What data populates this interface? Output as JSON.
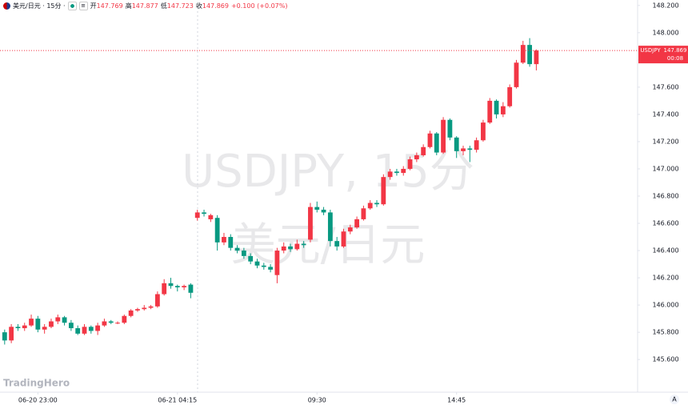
{
  "chart_data": {
    "type": "candlestick",
    "header": {
      "symbol": "美元/日元 · 15分 ·",
      "open_label": "开",
      "high_label": "高",
      "low_label": "低",
      "close_label": "收",
      "change": "+0.100 (+0.07%)"
    },
    "watermark": [
      "USDJPY, 15分",
      "美元/日元"
    ],
    "price_label": {
      "symbol": "USDJPY",
      "countdown": "00:08"
    },
    "logo": "TradingHero",
    "scale_mode": "A",
    "up_color": "#f23645",
    "down_color": "#089981",
    "grid": false,
    "xlim": [
      -0.7,
      95
    ],
    "xticks": [
      {
        "value": 5,
        "label": "06-20 23:00"
      },
      {
        "value": 26,
        "label": "06-21 04:15"
      },
      {
        "value": 47,
        "label": "09:30"
      },
      {
        "value": 68,
        "label": "14:45"
      }
    ],
    "ylim": [
      145.36,
      148.24
    ],
    "yticks": [
      {
        "value": 145.6,
        "label": "145.600"
      },
      {
        "value": 145.8,
        "label": "145.800"
      },
      {
        "value": 146,
        "label": "146.000"
      },
      {
        "value": 146.2,
        "label": "146.200"
      },
      {
        "value": 146.4,
        "label": "146.400"
      },
      {
        "value": 146.6,
        "label": "146.600"
      },
      {
        "value": 146.8,
        "label": "146.800"
      },
      {
        "value": 147,
        "label": "147.000"
      },
      {
        "value": 147.2,
        "label": "147.200"
      },
      {
        "value": 147.4,
        "label": "147.400"
      },
      {
        "value": 147.6,
        "label": "147.600"
      },
      {
        "value": 147.8,
        "label": "147.800"
      },
      {
        "value": 148,
        "label": "148.000"
      },
      {
        "value": 148.2,
        "label": "148.200"
      }
    ],
    "open": [
      145.8,
      145.74,
      145.84,
      145.83,
      145.85,
      145.9,
      145.82,
      145.84,
      145.88,
      145.91,
      145.87,
      145.83,
      145.79,
      145.84,
      145.81,
      145.85,
      145.88,
      145.87,
      145.87,
      145.92,
      145.96,
      145.97,
      145.98,
      145.99,
      146.08,
      146.16,
      146.14,
      146.13,
      146.15,
      146.64,
      146.68,
      146.63,
      146.64,
      146.46,
      146.5,
      146.42,
      146.4,
      146.36,
      146.32,
      146.29,
      146.28,
      146.22,
      146.4,
      146.43,
      146.41,
      146.45,
      146.48,
      146.72,
      146.7,
      146.68,
      146.47,
      146.43,
      146.54,
      146.57,
      146.63,
      146.71,
      146.75,
      146.74,
      146.94,
      146.98,
      146.97,
      147.0,
      147.07,
      147.1,
      147.16,
      147.26,
      147.12,
      147.36,
      147.23,
      147.13,
      147.15,
      147.14,
      147.21,
      147.34,
      147.5,
      147.4,
      147.46,
      147.6,
      147.78,
      147.91,
      147.769
    ],
    "high": [
      145.82,
      145.86,
      145.86,
      145.87,
      145.93,
      145.92,
      145.86,
      145.9,
      145.93,
      145.92,
      145.89,
      145.85,
      145.86,
      145.85,
      145.87,
      145.9,
      145.89,
      145.88,
      145.93,
      145.97,
      145.98,
      146.0,
      146.0,
      146.1,
      146.19,
      146.2,
      146.15,
      146.15,
      146.16,
      146.7,
      146.7,
      146.67,
      146.66,
      146.53,
      146.52,
      146.44,
      146.42,
      146.38,
      146.34,
      146.31,
      146.3,
      146.42,
      146.46,
      146.45,
      146.48,
      146.47,
      146.75,
      146.76,
      146.72,
      146.7,
      146.5,
      146.56,
      146.59,
      146.65,
      146.73,
      146.77,
      146.77,
      146.96,
      147.0,
      147.0,
      147.02,
      147.09,
      147.12,
      147.18,
      147.28,
      147.27,
      147.38,
      147.37,
      147.24,
      147.17,
      147.17,
      147.23,
      147.36,
      147.52,
      147.51,
      147.49,
      147.62,
      147.8,
      147.94,
      147.96,
      147.877
    ],
    "low": [
      145.71,
      145.72,
      145.81,
      145.81,
      145.84,
      145.8,
      145.79,
      145.83,
      145.86,
      145.85,
      145.81,
      145.78,
      145.78,
      145.79,
      145.78,
      145.84,
      145.86,
      145.86,
      145.86,
      145.91,
      145.95,
      145.96,
      145.97,
      145.98,
      146.07,
      146.12,
      146.1,
      146.11,
      146.05,
      146.62,
      146.65,
      146.61,
      146.4,
      146.44,
      146.4,
      146.38,
      146.34,
      146.3,
      146.27,
      146.26,
      146.24,
      146.16,
      146.38,
      146.39,
      146.4,
      146.42,
      146.46,
      146.68,
      146.66,
      146.43,
      146.4,
      146.42,
      146.52,
      146.56,
      146.62,
      146.7,
      146.72,
      146.73,
      146.92,
      146.95,
      146.95,
      146.99,
      147.05,
      147.09,
      147.15,
      147.1,
      147.11,
      147.21,
      147.08,
      147.1,
      147.05,
      147.12,
      147.2,
      147.33,
      147.37,
      147.38,
      147.45,
      147.59,
      147.77,
      147.75,
      147.723
    ],
    "close": [
      145.74,
      145.84,
      145.83,
      145.85,
      145.9,
      145.82,
      145.84,
      145.88,
      145.91,
      145.87,
      145.83,
      145.79,
      145.84,
      145.81,
      145.85,
      145.88,
      145.87,
      145.87,
      145.92,
      145.96,
      145.97,
      145.98,
      145.99,
      146.08,
      146.16,
      146.14,
      146.13,
      146.14,
      146.09,
      146.68,
      146.67,
      146.66,
      146.46,
      146.5,
      146.42,
      146.4,
      146.36,
      146.32,
      146.29,
      146.28,
      146.26,
      146.4,
      146.43,
      146.41,
      146.45,
      146.44,
      146.72,
      146.7,
      146.68,
      146.47,
      146.43,
      146.54,
      146.57,
      146.63,
      146.71,
      146.75,
      146.74,
      146.94,
      146.98,
      146.97,
      147.0,
      147.07,
      147.1,
      147.16,
      147.26,
      147.12,
      147.36,
      147.23,
      147.13,
      147.15,
      147.14,
      147.21,
      147.34,
      147.5,
      147.4,
      147.46,
      147.6,
      147.78,
      147.91,
      147.769,
      147.869
    ]
  }
}
